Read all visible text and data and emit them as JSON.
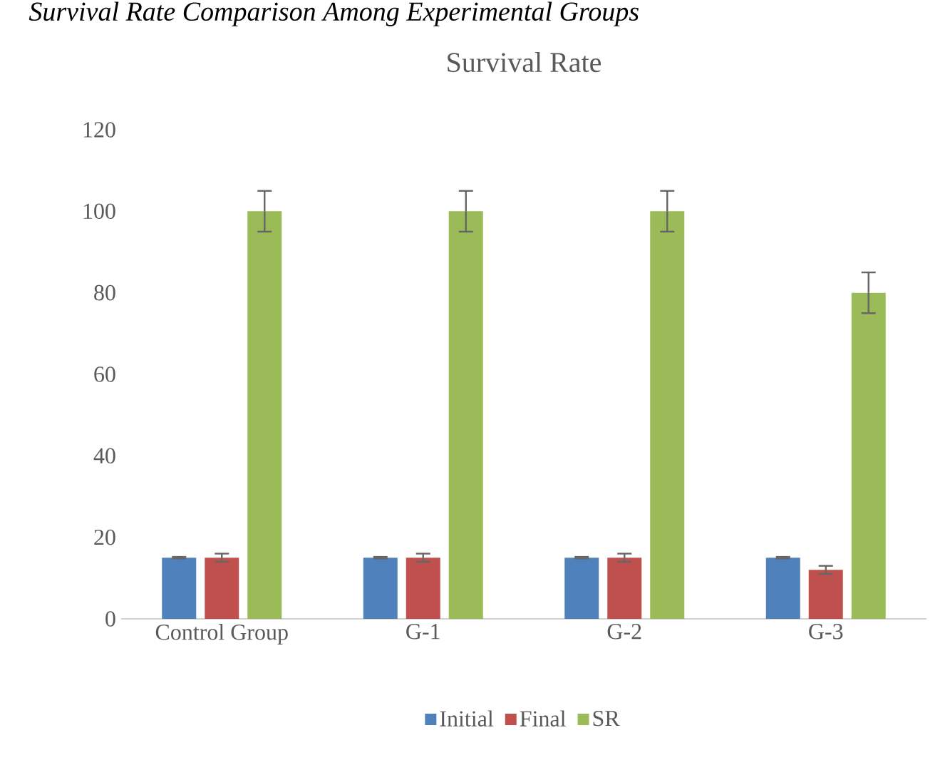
{
  "chart_data": {
    "type": "bar",
    "title": "Survival Rate",
    "annotations": [
      "Survival Rate Comparison Among Experimental Groups"
    ],
    "categories": [
      "Control Group",
      "G-1",
      "G-2",
      "G-3"
    ],
    "series": [
      {
        "name": "Initial",
        "color": "#4f81bd",
        "values": [
          15,
          15,
          15,
          15
        ],
        "errors": [
          0.2,
          0.2,
          0.2,
          0.2
        ]
      },
      {
        "name": "Final",
        "color": "#c0504d",
        "values": [
          15,
          15,
          15,
          12
        ],
        "errors": [
          1,
          1,
          1,
          1
        ]
      },
      {
        "name": "SR",
        "color": "#9bbb59",
        "values": [
          100,
          100,
          100,
          80
        ],
        "errors": [
          5,
          5,
          5,
          5
        ]
      }
    ],
    "ylim": [
      0,
      120
    ],
    "yticks": [
      0,
      20,
      40,
      60,
      80,
      100,
      120
    ],
    "grid": false,
    "legend": "bottom"
  }
}
